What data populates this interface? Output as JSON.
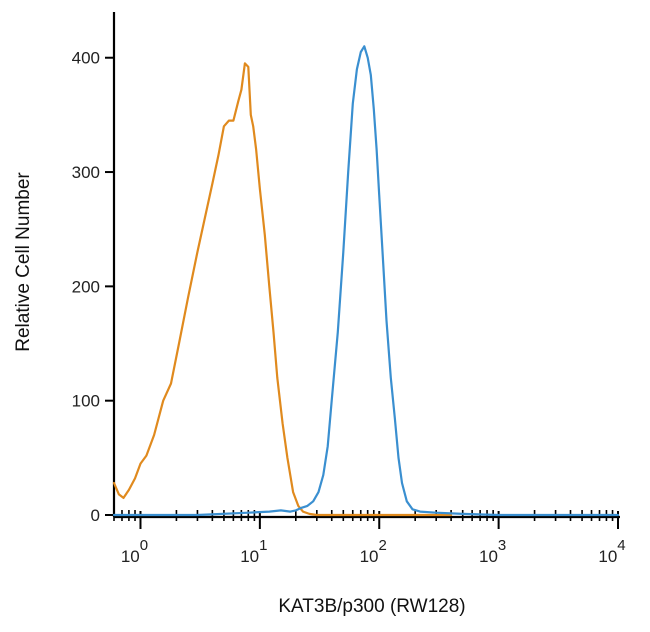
{
  "chart_data": {
    "type": "line",
    "xlabel": "KAT3B/p300 (RW128)",
    "ylabel": "Relative Cell Number",
    "xscale": "log",
    "xlim": [
      0.6,
      10000
    ],
    "ylim": [
      0,
      440
    ],
    "grid": false,
    "legend": "none",
    "y_ticks": [
      {
        "value": 0,
        "label": "0"
      },
      {
        "value": 100,
        "label": "100"
      },
      {
        "value": 200,
        "label": "200"
      },
      {
        "value": 300,
        "label": "300"
      },
      {
        "value": 400,
        "label": "400"
      }
    ],
    "x_ticks": [
      {
        "value": 1,
        "base": "10",
        "exp": "0"
      },
      {
        "value": 10,
        "base": "10",
        "exp": "1"
      },
      {
        "value": 100,
        "base": "10",
        "exp": "2"
      },
      {
        "value": 1000,
        "base": "10",
        "exp": "3"
      },
      {
        "value": 10000,
        "base": "10",
        "exp": "4"
      }
    ],
    "series": [
      {
        "color": "#e08a1e",
        "x": [
          0.6,
          0.66,
          0.72,
          0.8,
          0.9,
          1.0,
          1.12,
          1.3,
          1.55,
          1.8,
          2.1,
          2.5,
          3.0,
          3.5,
          4.0,
          4.5,
          5.0,
          5.5,
          6.0,
          6.6,
          7.0,
          7.5,
          8.0,
          8.4,
          8.8,
          9.3,
          10.0,
          11.0,
          12.0,
          13.0,
          14.0,
          15.5,
          17.0,
          19.0,
          21.0,
          23.0,
          26.0,
          30.0,
          40.0,
          60.0,
          100.0,
          200.0,
          400.0
        ],
        "y": [
          28,
          18,
          15,
          22,
          32,
          45,
          52,
          70,
          100,
          115,
          150,
          190,
          230,
          262,
          290,
          315,
          340,
          345,
          345,
          362,
          372,
          395,
          392,
          350,
          340,
          320,
          285,
          245,
          200,
          160,
          120,
          80,
          50,
          20,
          8,
          3,
          1,
          0,
          0,
          0,
          0,
          0,
          0
        ]
      },
      {
        "color": "#3a8fd0",
        "x": [
          0.6,
          3.0,
          8.0,
          12.0,
          15.0,
          18.0,
          20.0,
          22.0,
          25.0,
          28.0,
          31.0,
          34.0,
          37.0,
          40.0,
          45.0,
          50.0,
          55.0,
          60.0,
          65.0,
          70.0,
          75.0,
          80.0,
          85.0,
          90.0,
          95.0,
          100.0,
          108.0,
          115.0,
          125.0,
          135.0,
          145.0,
          155.0,
          170.0,
          190.0,
          220.0,
          300.0,
          500.0,
          1000.0,
          10000.0
        ],
        "y": [
          0,
          0,
          2,
          3,
          4,
          3,
          4,
          6,
          8,
          12,
          20,
          35,
          60,
          100,
          160,
          230,
          300,
          360,
          390,
          405,
          410,
          400,
          385,
          355,
          320,
          280,
          220,
          170,
          120,
          85,
          50,
          28,
          12,
          5,
          3,
          2,
          1,
          0,
          0
        ]
      }
    ]
  }
}
